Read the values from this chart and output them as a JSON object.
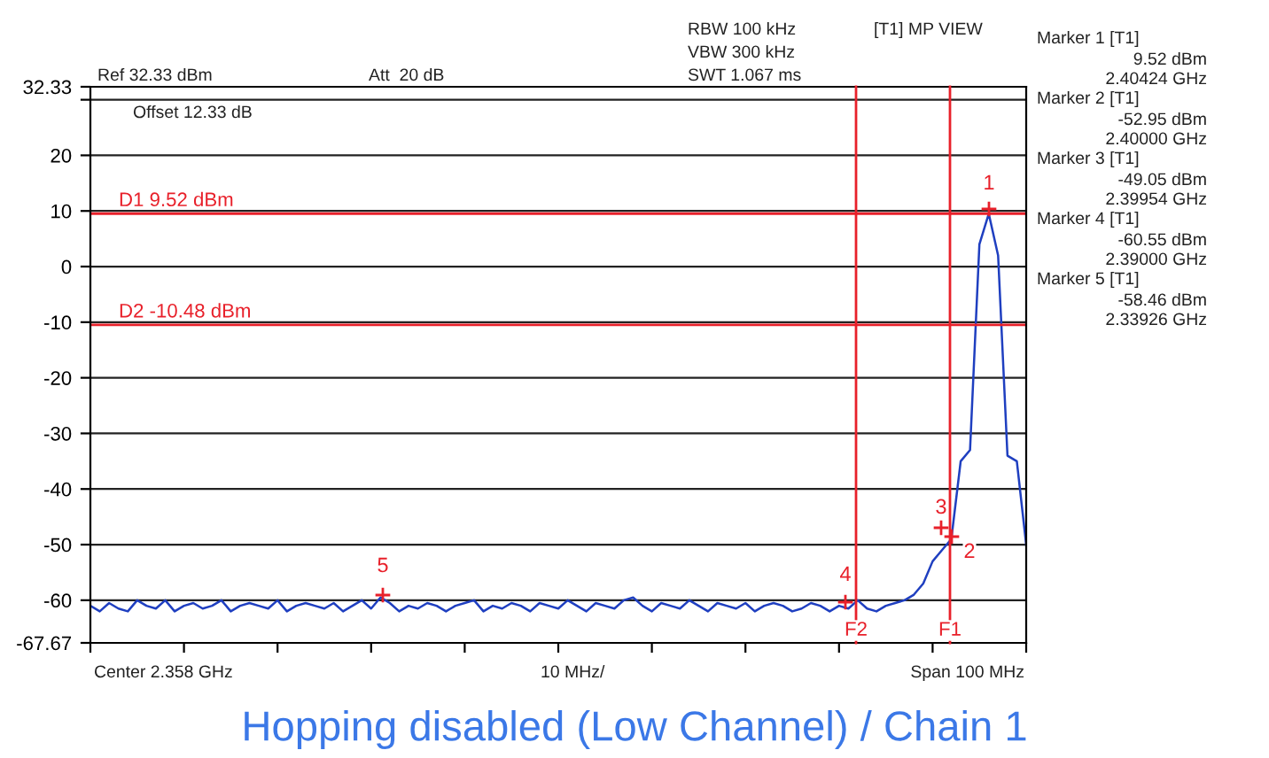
{
  "chart_data": {
    "type": "line",
    "title": "Hopping disabled (Low Channel) / Chain 1",
    "categories": [
      null,
      null,
      null,
      null,
      null,
      null,
      null,
      null,
      null,
      null,
      null,
      null,
      null,
      null,
      null,
      null,
      null,
      null,
      null,
      null,
      null,
      null,
      null,
      null,
      null,
      null,
      null,
      null,
      null,
      null,
      null,
      null,
      null,
      null,
      null,
      null,
      null,
      null,
      null,
      null,
      null,
      null,
      null,
      null,
      null,
      null,
      null,
      null,
      null,
      null,
      null,
      null,
      null,
      null,
      null,
      null,
      null,
      null,
      null,
      null,
      null,
      null,
      null,
      null,
      null,
      null,
      null,
      null,
      null,
      null,
      null,
      null,
      null,
      null,
      null,
      null,
      null,
      null,
      null,
      null,
      null,
      null,
      null,
      null,
      null,
      null,
      null,
      null,
      null,
      null,
      null,
      null,
      null,
      null,
      null,
      null,
      null,
      null,
      null,
      null,
      null
    ],
    "series": [
      {
        "color": "#1f3fc0",
        "values": [
          -61,
          -62,
          -60.5,
          -61.5,
          -62,
          -60,
          -61,
          -61.5,
          -60,
          -62,
          -61,
          -60.5,
          -61.5,
          -61,
          -60,
          -62,
          -61,
          -60.5,
          -61,
          -61.5,
          -60,
          -62,
          -61,
          -60.5,
          -61,
          -61.5,
          -60.5,
          -62,
          -61,
          -60,
          -61.5,
          -59.5,
          -60.5,
          -62,
          -61,
          -61.5,
          -60.5,
          -61,
          -62,
          -61,
          -60.5,
          -60,
          -62,
          -61,
          -61.5,
          -60.5,
          -61,
          -62,
          -60.5,
          -61,
          -61.5,
          -60,
          -61,
          -62,
          -60.5,
          -61,
          -61.5,
          -60,
          -59.5,
          -61,
          -62,
          -60.5,
          -61,
          -61.5,
          -60,
          -61,
          -62,
          -60.5,
          -61,
          -61.5,
          -60.5,
          -62,
          -61,
          -60.5,
          -61,
          -62,
          -61.5,
          -60.5,
          -61,
          -62,
          -61,
          -61.5,
          -60,
          -61.5,
          -62,
          -61,
          -60.5,
          -60,
          -59,
          -57,
          -53,
          -51,
          -49,
          -35,
          -33,
          4,
          9.5,
          2,
          -34,
          -35,
          -50
        ]
      }
    ],
    "ylim": [
      -67.67,
      32.33
    ],
    "yticks": [
      32.33,
      {
        "value": 30,
        "label": null
      },
      20,
      10,
      0,
      -10,
      -20,
      -30,
      -40,
      -50,
      -60,
      -67.67
    ],
    "grid": "y",
    "ref_lines": [
      {
        "axis": "y",
        "value": 9.52,
        "label": "D1 9.52 dBm",
        "color": "#e8202a"
      },
      {
        "axis": "y",
        "value": -10.48,
        "label": "D2 -10.48 dBm",
        "color": "#e8202a"
      }
    ],
    "annotations": [
      "Ref 32.33 dBm",
      "Offset 12.33 dB",
      "Att  20 dB",
      "RBW 100 kHz",
      "VBW 300 kHz",
      "SWT 1.067 ms",
      "[T1] MP VIEW",
      "Marker 1 [T1]",
      "9.52 dBm",
      "2.40424 GHz",
      "Marker 2 [T1]",
      "-52.95 dBm",
      "2.40000 GHz",
      "Marker 3 [T1]",
      "-49.05 dBm",
      "2.39954 GHz",
      "Marker 4 [T1]",
      "-60.55 dBm",
      "2.39000 GHz",
      "Marker 5 [T1]",
      "-58.46 dBm",
      "2.33926 GHz",
      "Center 2.358 GHz",
      "10 MHz/",
      "Span 100 MHz",
      "1",
      "2",
      "3",
      "4",
      "5",
      "F2",
      "F1"
    ]
  }
}
